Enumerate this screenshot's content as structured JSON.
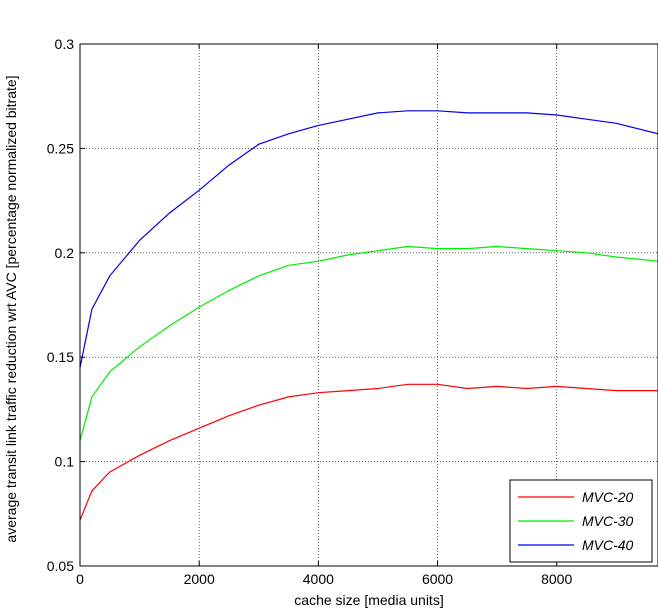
{
  "chart_data": {
    "type": "line",
    "title": "",
    "xlabel": "cache size [media units]",
    "ylabel": "average transit link traffic reduction wrt AVC [percentage normalized bitrate]",
    "xlim": [
      0,
      9700
    ],
    "ylim": [
      0.05,
      0.3
    ],
    "xticks": [
      0,
      2000,
      4000,
      6000,
      8000
    ],
    "yticks": [
      0.05,
      0.1,
      0.15,
      0.2,
      0.25,
      0.3
    ],
    "xtick_labels": [
      "0",
      "2000",
      "4000",
      "6000",
      "8000"
    ],
    "ytick_labels": [
      "0.05",
      "0.1",
      "0.15",
      "0.2",
      "0.25",
      "0.3"
    ],
    "grid": true,
    "legend_position": "bottom-right",
    "series": [
      {
        "name": "MVC-20",
        "color": "#ff0000",
        "x": [
          0,
          200,
          500,
          1000,
          1500,
          2000,
          2500,
          3000,
          3500,
          4000,
          4500,
          5000,
          5500,
          6000,
          6500,
          7000,
          7500,
          8000,
          8500,
          9000,
          9700
        ],
        "y": [
          0.072,
          0.086,
          0.095,
          0.103,
          0.11,
          0.116,
          0.122,
          0.127,
          0.131,
          0.133,
          0.134,
          0.135,
          0.137,
          0.137,
          0.135,
          0.136,
          0.135,
          0.136,
          0.135,
          0.134,
          0.134
        ]
      },
      {
        "name": "MVC-30",
        "color": "#00ee00",
        "x": [
          0,
          200,
          500,
          1000,
          1500,
          2000,
          2500,
          3000,
          3500,
          4000,
          4500,
          5000,
          5500,
          6000,
          6500,
          7000,
          7500,
          8000,
          8500,
          9000,
          9700
        ],
        "y": [
          0.11,
          0.131,
          0.143,
          0.155,
          0.165,
          0.174,
          0.182,
          0.189,
          0.194,
          0.196,
          0.199,
          0.201,
          0.203,
          0.202,
          0.202,
          0.203,
          0.202,
          0.201,
          0.2,
          0.198,
          0.196
        ]
      },
      {
        "name": "MVC-40",
        "color": "#0000ee",
        "x": [
          0,
          200,
          500,
          1000,
          1500,
          2000,
          2500,
          3000,
          3500,
          4000,
          4500,
          5000,
          5500,
          6000,
          6500,
          7000,
          7500,
          8000,
          8500,
          9000,
          9700
        ],
        "y": [
          0.145,
          0.173,
          0.189,
          0.206,
          0.219,
          0.23,
          0.242,
          0.252,
          0.257,
          0.261,
          0.264,
          0.267,
          0.268,
          0.268,
          0.267,
          0.267,
          0.267,
          0.266,
          0.264,
          0.262,
          0.257
        ]
      }
    ]
  }
}
